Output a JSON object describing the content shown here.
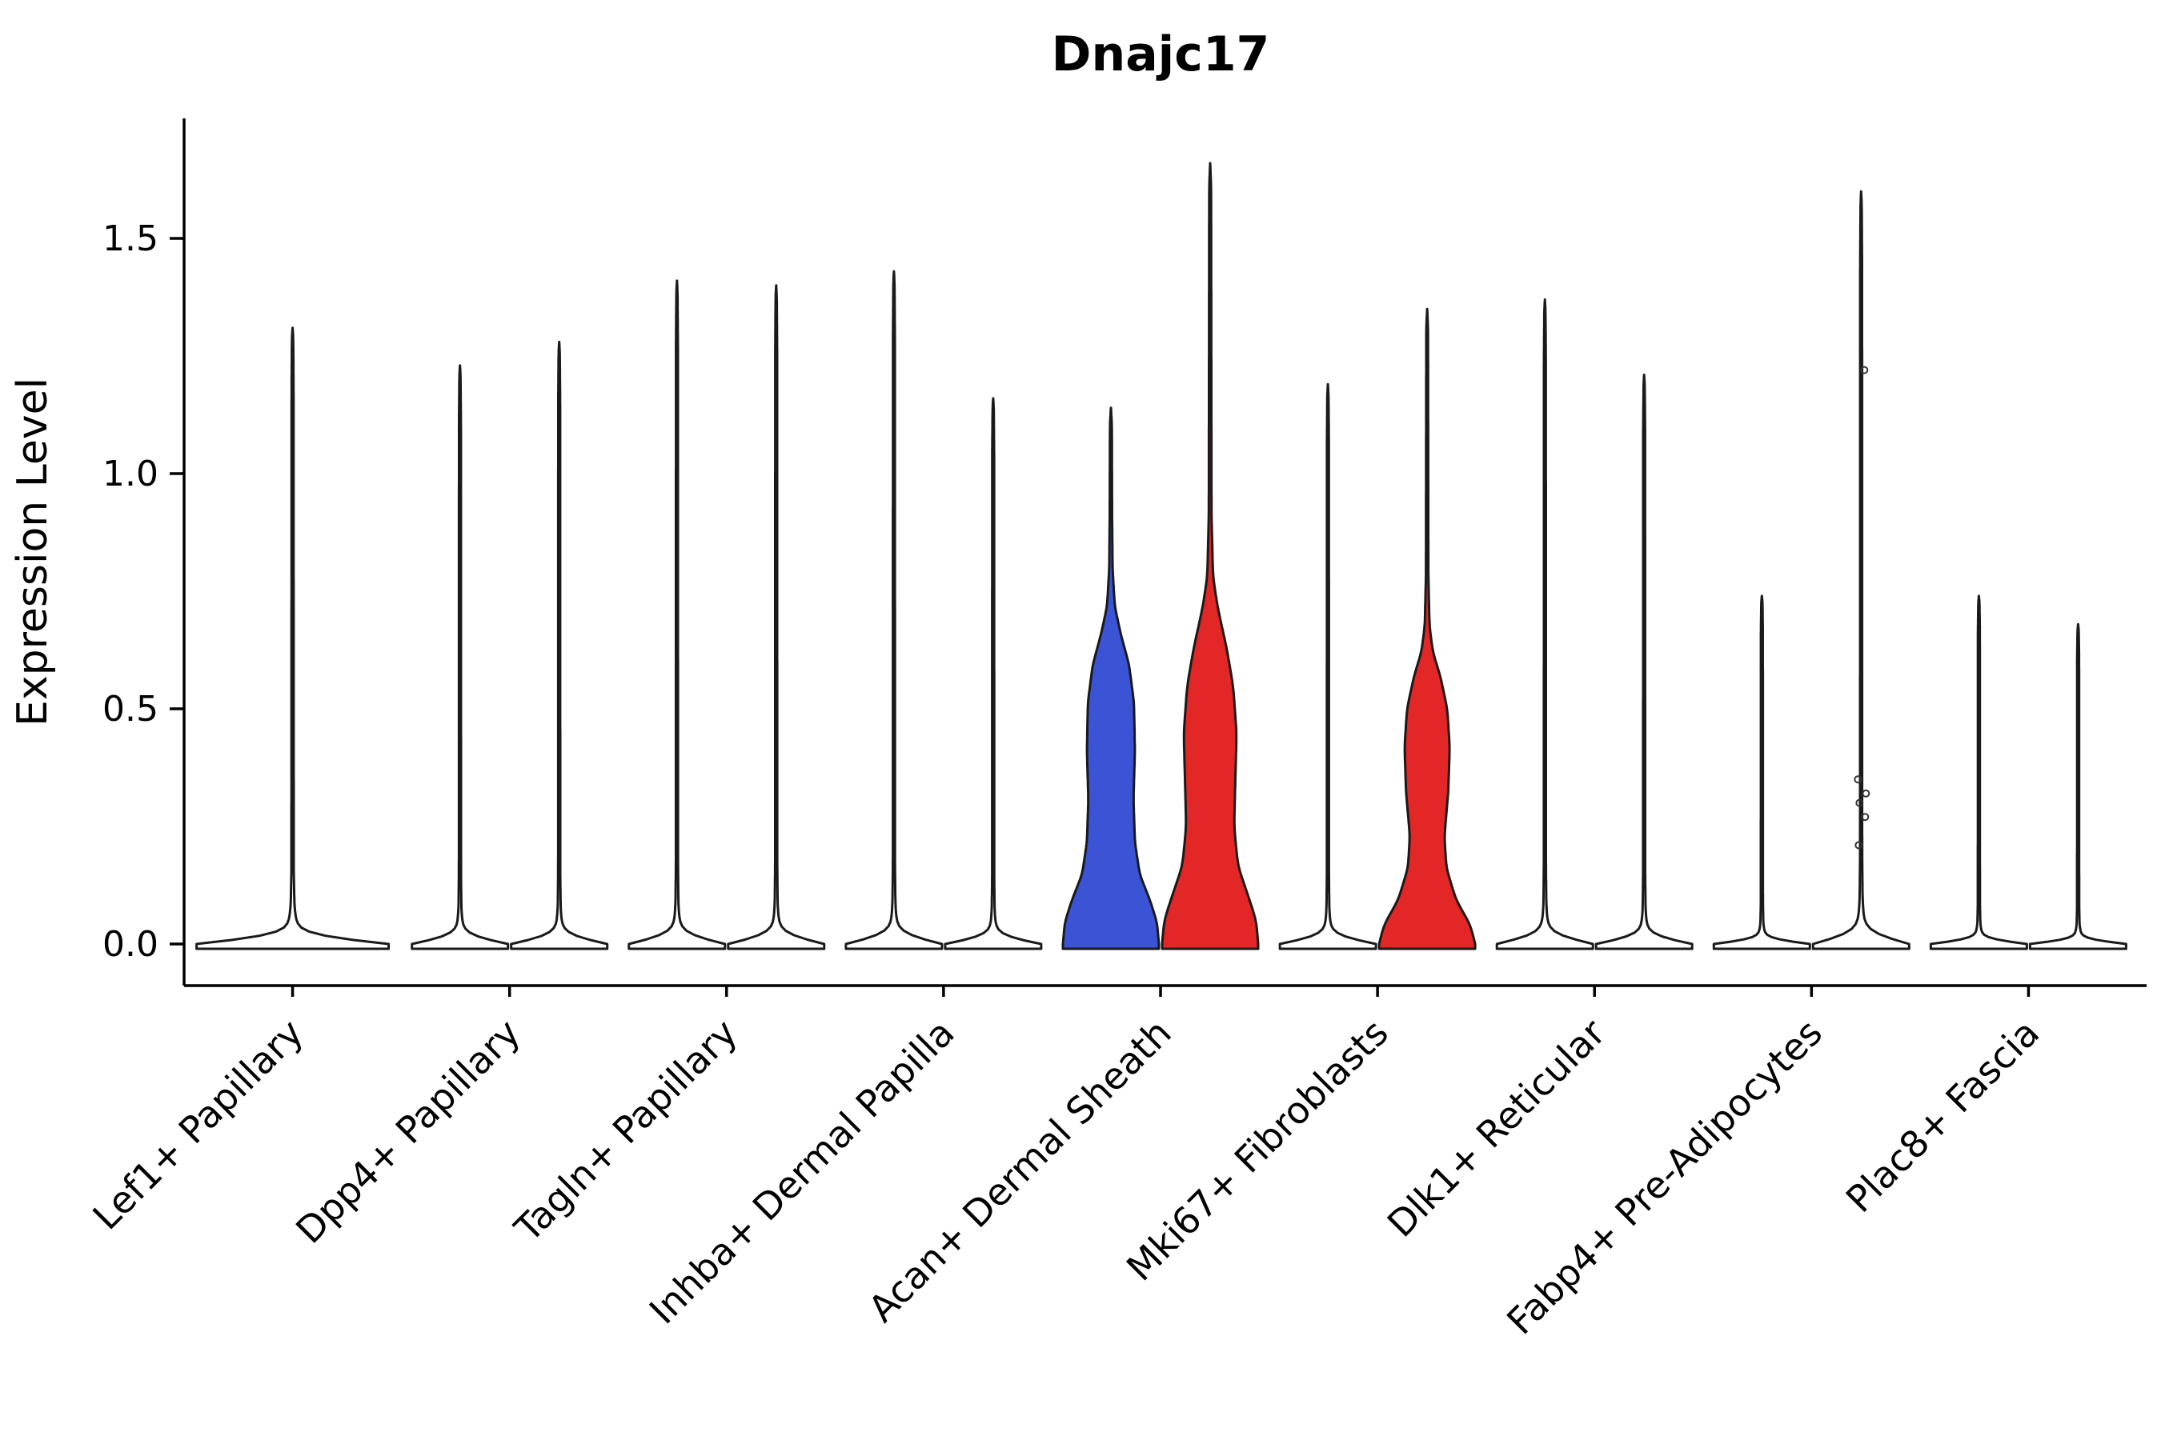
{
  "chart_data": {
    "type": "violin",
    "title": "Dnajc17",
    "ylabel": "Expression Level",
    "xlabel": "",
    "ylim": [
      -0.09,
      1.76
    ],
    "grid": false,
    "legend": null,
    "yticks": [
      {
        "label": "0.0",
        "value": 0.0
      },
      {
        "label": "0.5",
        "value": 0.5
      },
      {
        "label": "1.0",
        "value": 1.0
      },
      {
        "label": "1.5",
        "value": 1.5
      }
    ],
    "categories": [
      "Lef1+ Papillary",
      "Dpp4+ Papillary",
      "Tagln+ Papillary",
      "Inhba+ Dermal Papilla",
      "Acan+ Dermal Sheath",
      "Mki67+ Fibroblasts",
      "Dlk1+ Reticular",
      "Fabp4+ Pre-Adipocytes",
      "Plac8+ Fascia"
    ],
    "colors": {
      "blue": "#3B54D6",
      "red": "#E32726",
      "white": "#FFFFFF",
      "stroke": "#1A1A1A",
      "axis": "#000000",
      "point": "#333333"
    },
    "profiles": {
      "spike": [
        [
          0,
          1.0
        ],
        [
          0.006,
          0.6
        ],
        [
          0.015,
          0.18
        ],
        [
          0.03,
          0.06
        ],
        [
          0.06,
          0.03
        ],
        [
          0.12,
          0.022
        ],
        [
          0.9,
          0.02
        ],
        [
          0.985,
          0.012
        ],
        [
          1,
          0
        ]
      ],
      "spike_center": [
        [
          0,
          1.0
        ],
        [
          0.006,
          0.55
        ],
        [
          0.015,
          0.15
        ],
        [
          0.03,
          0.045
        ],
        [
          0.06,
          0.02
        ],
        [
          0.12,
          0.012
        ],
        [
          0.9,
          0.01
        ],
        [
          0.985,
          0.007
        ],
        [
          1,
          0
        ]
      ],
      "body_blue": [
        [
          0,
          1.0
        ],
        [
          0.04,
          0.96
        ],
        [
          0.08,
          0.82
        ],
        [
          0.13,
          0.6
        ],
        [
          0.19,
          0.5
        ],
        [
          0.27,
          0.47
        ],
        [
          0.36,
          0.5
        ],
        [
          0.45,
          0.48
        ],
        [
          0.52,
          0.38
        ],
        [
          0.58,
          0.2
        ],
        [
          0.63,
          0.08
        ],
        [
          0.7,
          0.035
        ],
        [
          0.8,
          0.025
        ],
        [
          0.97,
          0.02
        ],
        [
          1,
          0
        ]
      ],
      "body_red_tall": [
        [
          0,
          1.0
        ],
        [
          0.03,
          0.96
        ],
        [
          0.06,
          0.8
        ],
        [
          0.1,
          0.58
        ],
        [
          0.15,
          0.5
        ],
        [
          0.2,
          0.52
        ],
        [
          0.27,
          0.55
        ],
        [
          0.33,
          0.48
        ],
        [
          0.38,
          0.34
        ],
        [
          0.43,
          0.16
        ],
        [
          0.47,
          0.06
        ],
        [
          0.55,
          0.028
        ],
        [
          0.97,
          0.02
        ],
        [
          1,
          0
        ]
      ],
      "body_red_short": [
        [
          0,
          1.0
        ],
        [
          0.03,
          0.9
        ],
        [
          0.07,
          0.6
        ],
        [
          0.12,
          0.4
        ],
        [
          0.17,
          0.36
        ],
        [
          0.24,
          0.44
        ],
        [
          0.31,
          0.47
        ],
        [
          0.37,
          0.42
        ],
        [
          0.42,
          0.28
        ],
        [
          0.46,
          0.12
        ],
        [
          0.5,
          0.05
        ],
        [
          0.58,
          0.025
        ],
        [
          0.97,
          0.018
        ],
        [
          1,
          0
        ]
      ]
    },
    "violins": [
      {
        "slot": 0,
        "offset": 0,
        "half_width": 120,
        "max": 1.31,
        "fill": "white",
        "profile": "spike_center"
      },
      {
        "slot": 1,
        "offset": -62,
        "half_width": 60,
        "max": 1.23,
        "fill": "white",
        "profile": "spike"
      },
      {
        "slot": 1,
        "offset": 62,
        "half_width": 60,
        "max": 1.28,
        "fill": "white",
        "profile": "spike"
      },
      {
        "slot": 2,
        "offset": -62,
        "half_width": 60,
        "max": 1.41,
        "fill": "white",
        "profile": "spike"
      },
      {
        "slot": 2,
        "offset": 62,
        "half_width": 60,
        "max": 1.4,
        "fill": "white",
        "profile": "spike"
      },
      {
        "slot": 3,
        "offset": -62,
        "half_width": 60,
        "max": 1.43,
        "fill": "white",
        "profile": "spike"
      },
      {
        "slot": 3,
        "offset": 62,
        "half_width": 60,
        "max": 1.16,
        "fill": "white",
        "profile": "spike"
      },
      {
        "slot": 4,
        "offset": -62,
        "half_width": 60,
        "max": 1.14,
        "fill": "blue",
        "profile": "body_blue"
      },
      {
        "slot": 4,
        "offset": 62,
        "half_width": 60,
        "max": 1.66,
        "fill": "red",
        "profile": "body_red_tall"
      },
      {
        "slot": 5,
        "offset": -62,
        "half_width": 60,
        "max": 1.19,
        "fill": "white",
        "profile": "spike"
      },
      {
        "slot": 5,
        "offset": 62,
        "half_width": 60,
        "max": 1.35,
        "fill": "red",
        "profile": "body_red_short"
      },
      {
        "slot": 6,
        "offset": -62,
        "half_width": 60,
        "max": 1.37,
        "fill": "white",
        "profile": "spike"
      },
      {
        "slot": 6,
        "offset": 62,
        "half_width": 60,
        "max": 1.21,
        "fill": "white",
        "profile": "spike"
      },
      {
        "slot": 7,
        "offset": -62,
        "half_width": 60,
        "max": 0.74,
        "fill": "white",
        "profile": "spike"
      },
      {
        "slot": 7,
        "offset": 62,
        "half_width": 60,
        "max": 1.6,
        "fill": "white",
        "profile": "spike",
        "points": [
          {
            "y": 1.22,
            "dx": 4
          },
          {
            "y": 0.35,
            "dx": -4
          },
          {
            "y": 0.32,
            "dx": 6
          },
          {
            "y": 0.3,
            "dx": -2
          },
          {
            "y": 0.27,
            "dx": 5
          },
          {
            "y": 0.21,
            "dx": -3
          }
        ]
      },
      {
        "slot": 8,
        "offset": -62,
        "half_width": 60,
        "max": 0.74,
        "fill": "white",
        "profile": "spike"
      },
      {
        "slot": 8,
        "offset": 62,
        "half_width": 60,
        "max": 0.68,
        "fill": "white",
        "profile": "spike"
      }
    ]
  }
}
